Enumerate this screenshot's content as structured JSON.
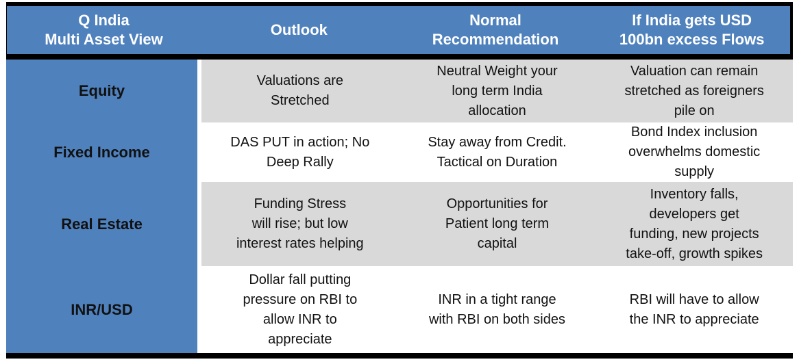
{
  "theme": {
    "accent-blue": "#4F81BD",
    "band-gray": "#D9D9D9",
    "border-black": "#000000",
    "header-text": "#FFFFFF",
    "body-text": "#111111"
  },
  "table": {
    "columns": [
      {
        "label": "Q India\nMulti Asset View"
      },
      {
        "label": "Outlook"
      },
      {
        "label": "Normal\nRecommendation"
      },
      {
        "label": "If India gets USD\n100bn excess Flows"
      }
    ],
    "rows": [
      {
        "label": "Equity",
        "cells": [
          "Valuations are\nStretched",
          "Neutral Weight your\nlong term India\nallocation",
          "Valuation can remain\nstretched as foreigners\npile on"
        ]
      },
      {
        "label": "Fixed Income",
        "cells": [
          "DAS PUT in action; No\nDeep Rally",
          "Stay away from Credit.\nTactical on Duration",
          "Bond Index inclusion\noverwhelms domestic\nsupply"
        ]
      },
      {
        "label": "Real Estate",
        "cells": [
          "Funding Stress\nwill rise; but low\ninterest rates helping",
          "Opportunities for\nPatient long term\ncapital",
          "Inventory falls,\ndevelopers get\nfunding, new projects\ntake-off, growth spikes"
        ]
      },
      {
        "label": "INR/USD",
        "cells": [
          "Dollar fall putting\npressure on RBI to\nallow INR to\nappreciate",
          "INR in a tight range\nwith RBI on both sides",
          "RBI will have to allow\nthe INR to appreciate"
        ]
      }
    ]
  }
}
